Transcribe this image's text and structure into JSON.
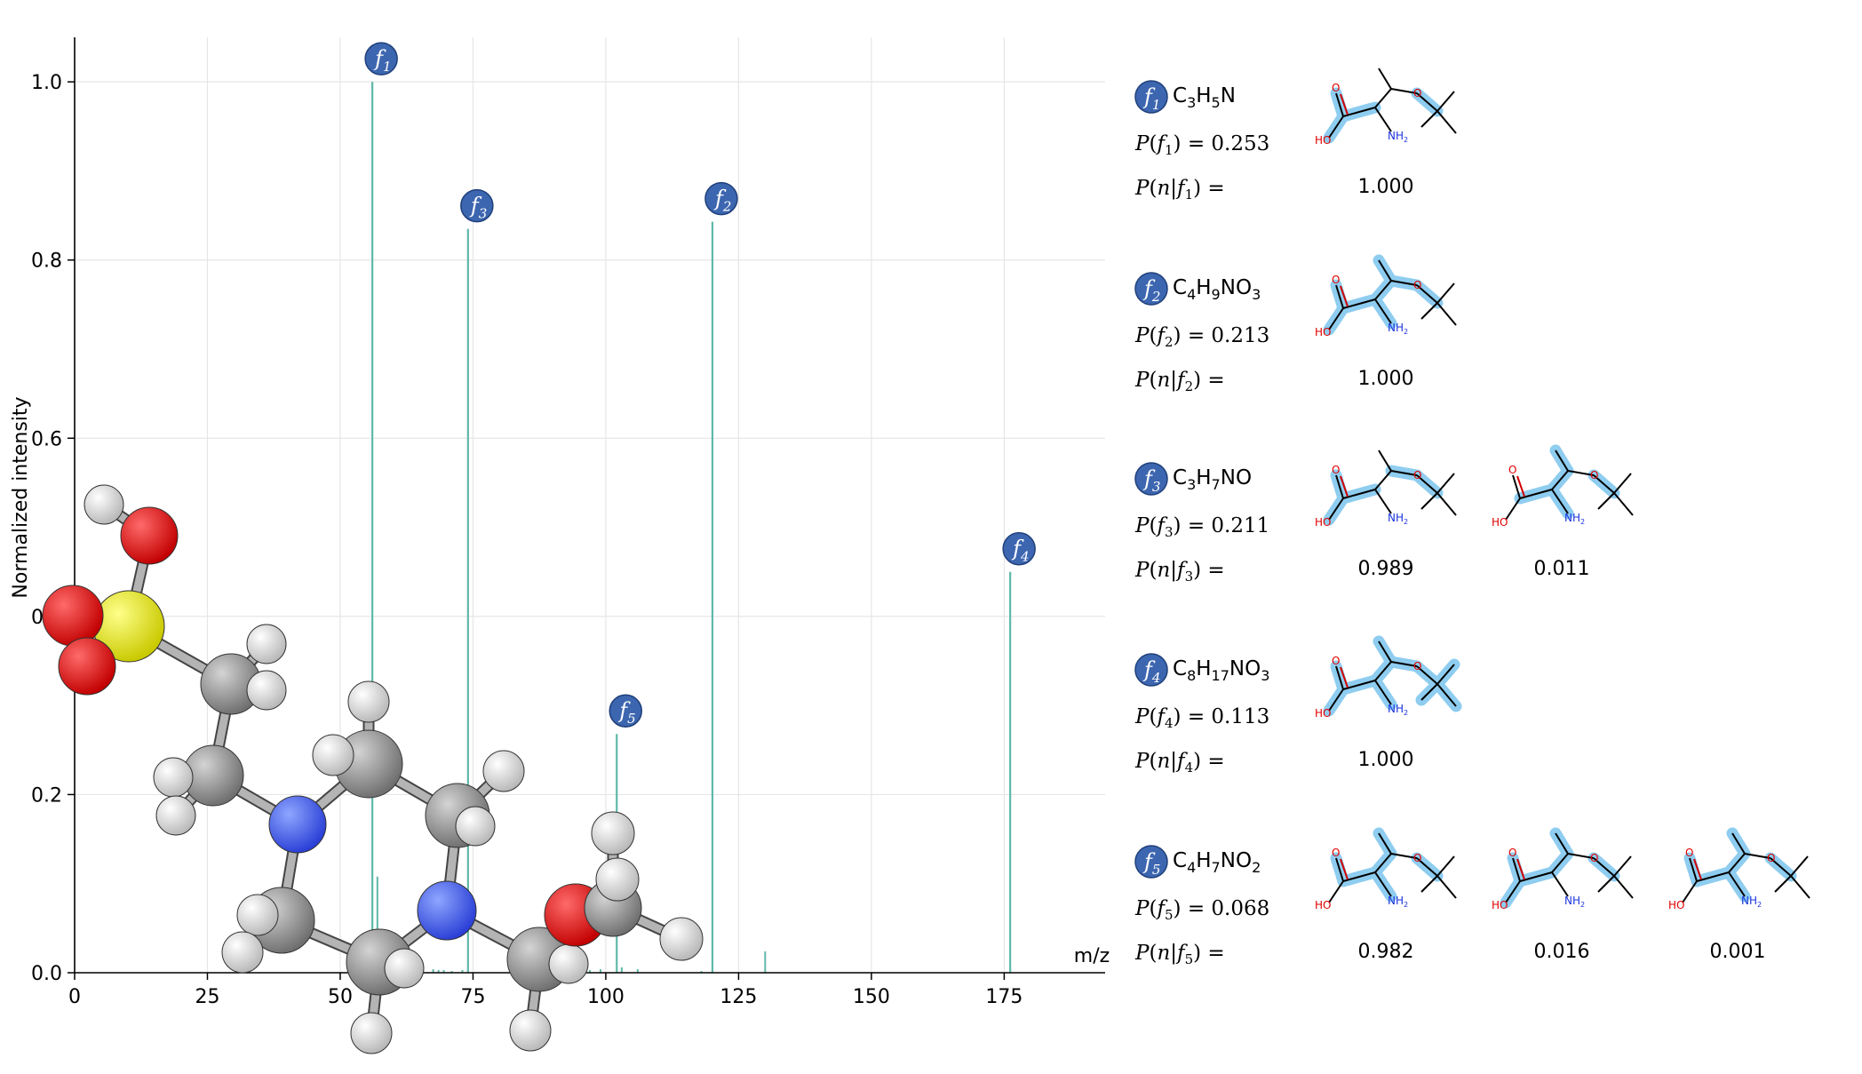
{
  "chart_data": {
    "type": "bar",
    "xlabel": "m/z",
    "ylabel": "Normalized intensity",
    "xlim": [
      0,
      194
    ],
    "ylim": [
      0,
      1.05
    ],
    "xticks": [
      "0",
      "25",
      "50",
      "75",
      "100",
      "125",
      "150",
      "175"
    ],
    "yticks": [
      "0.0",
      "0.2",
      "0.4",
      "0.6",
      "0.8",
      "1.0"
    ],
    "grid": true,
    "labeled_peaks": [
      {
        "label": "f",
        "sub": "1",
        "x": 56.05,
        "y": 1.0
      },
      {
        "label": "f",
        "sub": "3",
        "x": 74.06,
        "y": 0.835
      },
      {
        "label": "f",
        "sub": "2",
        "x": 120.07,
        "y": 0.843
      },
      {
        "label": "f",
        "sub": "5",
        "x": 102.06,
        "y": 0.268
      },
      {
        "label": "f",
        "sub": "4",
        "x": 176.13,
        "y": 0.45
      }
    ],
    "minor_peaks": [
      {
        "x": 57.0,
        "y": 0.108
      },
      {
        "x": 67.5,
        "y": 0.004
      },
      {
        "x": 68.5,
        "y": 0.003
      },
      {
        "x": 69.5,
        "y": 0.003
      },
      {
        "x": 71.0,
        "y": 0.002
      },
      {
        "x": 73.0,
        "y": 0.003
      },
      {
        "x": 97.0,
        "y": 0.003
      },
      {
        "x": 99.0,
        "y": 0.004
      },
      {
        "x": 103.0,
        "y": 0.006
      },
      {
        "x": 106.0,
        "y": 0.004
      },
      {
        "x": 118.0,
        "y": 0.002
      },
      {
        "x": 130.0,
        "y": 0.024
      }
    ],
    "colors": {
      "peak": "#5fb8a8",
      "badge": "#3d66b0",
      "grid": "#e6e6e6",
      "highlight": "#8ecdf0"
    }
  },
  "fragments": [
    {
      "sub": "1",
      "formula": [
        [
          "C",
          ""
        ],
        [
          "3",
          "s"
        ],
        [
          "H",
          ""
        ],
        [
          "5",
          "s"
        ],
        [
          "N",
          ""
        ]
      ],
      "p": "0.253",
      "candidates": [
        {
          "value": "1.000",
          "hl": [
            "b1",
            "b2",
            "b3",
            "b8"
          ]
        }
      ]
    },
    {
      "sub": "2",
      "formula": [
        [
          "C",
          ""
        ],
        [
          "4",
          "s"
        ],
        [
          "H",
          ""
        ],
        [
          "9",
          "s"
        ],
        [
          "N",
          ""
        ],
        [
          "O",
          ""
        ],
        [
          "3",
          "s"
        ]
      ],
      "p": "0.213",
      "candidates": [
        {
          "value": "1.000",
          "hl": [
            "b1",
            "b2",
            "b3",
            "b4",
            "b5",
            "b6",
            "b7",
            "b8"
          ]
        }
      ]
    },
    {
      "sub": "3",
      "formula": [
        [
          "C",
          ""
        ],
        [
          "3",
          "s"
        ],
        [
          "H",
          ""
        ],
        [
          "7",
          "s"
        ],
        [
          "N",
          ""
        ],
        [
          "O",
          ""
        ]
      ],
      "p": "0.211",
      "candidates": [
        {
          "value": "0.989",
          "hl": [
            "b1",
            "b2",
            "b3",
            "b7",
            "b8"
          ]
        },
        {
          "value": "0.011",
          "hl": [
            "b1",
            "b4",
            "b5",
            "b6",
            "b8"
          ]
        }
      ]
    },
    {
      "sub": "4",
      "formula": [
        [
          "C",
          ""
        ],
        [
          "8",
          "s"
        ],
        [
          "H",
          ""
        ],
        [
          "17",
          "s"
        ],
        [
          "N",
          ""
        ],
        [
          "O",
          ""
        ],
        [
          "3",
          "s"
        ]
      ],
      "p": "0.113",
      "candidates": [
        {
          "value": "1.000",
          "hl": [
            "b1",
            "b2",
            "b3",
            "b4",
            "b5",
            "b6",
            "b7",
            "b8",
            "b9",
            "b10",
            "b11",
            "b12"
          ]
        }
      ]
    },
    {
      "sub": "5",
      "formula": [
        [
          "C",
          ""
        ],
        [
          "4",
          "s"
        ],
        [
          "H",
          ""
        ],
        [
          "7",
          "s"
        ],
        [
          "N",
          ""
        ],
        [
          "O",
          ""
        ],
        [
          "2",
          "s"
        ]
      ],
      "p": "0.068",
      "candidates": [
        {
          "value": "0.982",
          "hl": [
            "b1",
            "b2",
            "b4",
            "b5",
            "b6",
            "b8"
          ]
        },
        {
          "value": "0.016",
          "hl": [
            "b1",
            "b2",
            "b3",
            "b4",
            "b5",
            "b8"
          ]
        },
        {
          "value": "0.001",
          "hl": [
            "b1",
            "b2",
            "b4",
            "b5",
            "b6",
            "b8"
          ]
        }
      ]
    }
  ],
  "atom_labels": {
    "oxygen": "O",
    "hydroxyl": "HO",
    "amine": "NH",
    "amine_sub": "2"
  },
  "prob_text": {
    "P": "P",
    "n": "n",
    "open": "(",
    "close": ")",
    "bar": "|",
    "eq": " = "
  }
}
